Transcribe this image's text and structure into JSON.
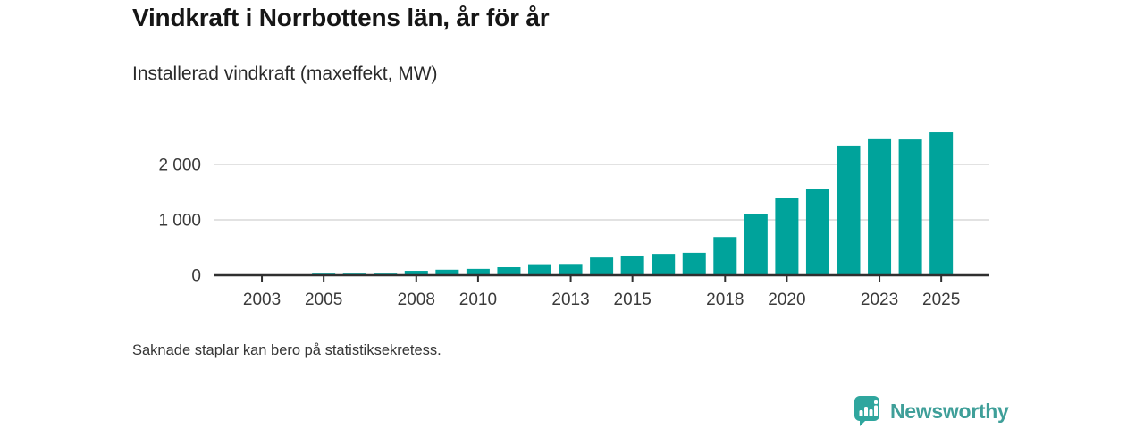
{
  "header": {
    "title": "Vindkraft i Norrbottens län, år för år",
    "subtitle": "Installerad vindkraft (maxeffekt, MW)"
  },
  "footnote": "Saknade staplar kan bero på statistiksekretess.",
  "branding": {
    "logo_text": "Newsworthy",
    "logo_icon": "bar-chart-map-pin-icon",
    "logo_text_color": "#3f9f99",
    "logo_icon_color": "#2fa69e"
  },
  "colors": {
    "bar": "#00a39b",
    "axis_line": "#2f2f2f",
    "axis_text": "#3a3a3a",
    "gridline": "#d9d9d9",
    "title_text": "#161616"
  },
  "chart_data": {
    "type": "bar",
    "title": "Vindkraft i Norrbottens län, år för år",
    "subtitle": "Installerad vindkraft (maxeffekt, MW)",
    "unit": "MW",
    "x_domain": [
      2002,
      2025
    ],
    "ylim": [
      0,
      2700
    ],
    "grid": "horizontal",
    "legend": "none",
    "y_ticks": [
      {
        "value": 0,
        "label": "0"
      },
      {
        "value": 1000,
        "label": "1 000"
      },
      {
        "value": 2000,
        "label": "2 000"
      }
    ],
    "x_tick_years": [
      2003,
      2005,
      2008,
      2010,
      2013,
      2015,
      2018,
      2020,
      2023,
      2025
    ],
    "missing_years": [
      2002,
      2003,
      2004
    ],
    "series": [
      {
        "name": "Installerad vindkraft (maxeffekt, MW)",
        "points": [
          {
            "year": 2005,
            "value": 30
          },
          {
            "year": 2006,
            "value": 30
          },
          {
            "year": 2007,
            "value": 30
          },
          {
            "year": 2008,
            "value": 80
          },
          {
            "year": 2009,
            "value": 100
          },
          {
            "year": 2010,
            "value": 115
          },
          {
            "year": 2011,
            "value": 145
          },
          {
            "year": 2012,
            "value": 200
          },
          {
            "year": 2013,
            "value": 205
          },
          {
            "year": 2014,
            "value": 320
          },
          {
            "year": 2015,
            "value": 355
          },
          {
            "year": 2016,
            "value": 385
          },
          {
            "year": 2017,
            "value": 405
          },
          {
            "year": 2018,
            "value": 690
          },
          {
            "year": 2019,
            "value": 1110
          },
          {
            "year": 2020,
            "value": 1400
          },
          {
            "year": 2021,
            "value": 1550
          },
          {
            "year": 2022,
            "value": 2340
          },
          {
            "year": 2023,
            "value": 2470
          },
          {
            "year": 2024,
            "value": 2450
          },
          {
            "year": 2025,
            "value": 2580
          }
        ]
      }
    ]
  }
}
